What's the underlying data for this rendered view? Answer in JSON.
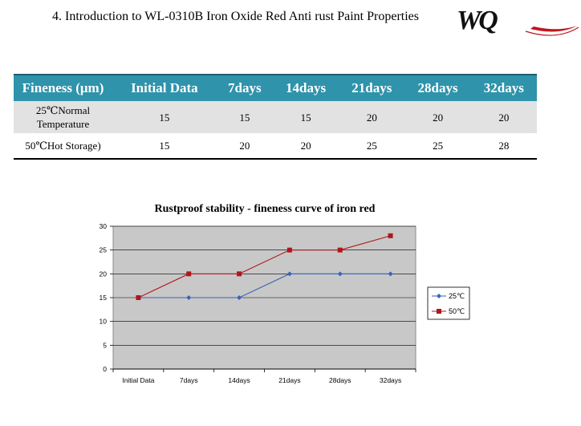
{
  "heading": "4. Introduction to WL-0310B Iron Oxide Red Anti rust Paint Properties",
  "logo_text": "WQ",
  "table": {
    "headers": [
      "Fineness (μm)",
      "Initial Data",
      "7days",
      "14days",
      "21days",
      "28days",
      "32days"
    ],
    "rows": [
      {
        "label_line1": "25℃Normal",
        "label_line2": "Temperature",
        "values": [
          "15",
          "15",
          "15",
          "20",
          "20",
          "20"
        ]
      },
      {
        "label_line1": "50℃Hot Storage)",
        "label_line2": "",
        "values": [
          "15",
          "20",
          "20",
          "25",
          "25",
          "28"
        ]
      }
    ]
  },
  "chart_data": {
    "type": "line",
    "title": "Rustproof stability - fineness curve of iron red",
    "categories": [
      "Initial Data",
      "7days",
      "14days",
      "21days",
      "28days",
      "32days"
    ],
    "series": [
      {
        "name": "25℃",
        "color": "#3a62b8",
        "values": [
          15,
          15,
          15,
          20,
          20,
          20
        ]
      },
      {
        "name": "50℃",
        "color": "#b0161c",
        "values": [
          15,
          20,
          20,
          25,
          25,
          28
        ]
      }
    ],
    "ylim": [
      0,
      30
    ],
    "yticks": [
      0,
      5,
      10,
      15,
      20,
      25,
      30
    ],
    "grid": true,
    "legend": "right",
    "xlabel": "",
    "ylabel": ""
  }
}
